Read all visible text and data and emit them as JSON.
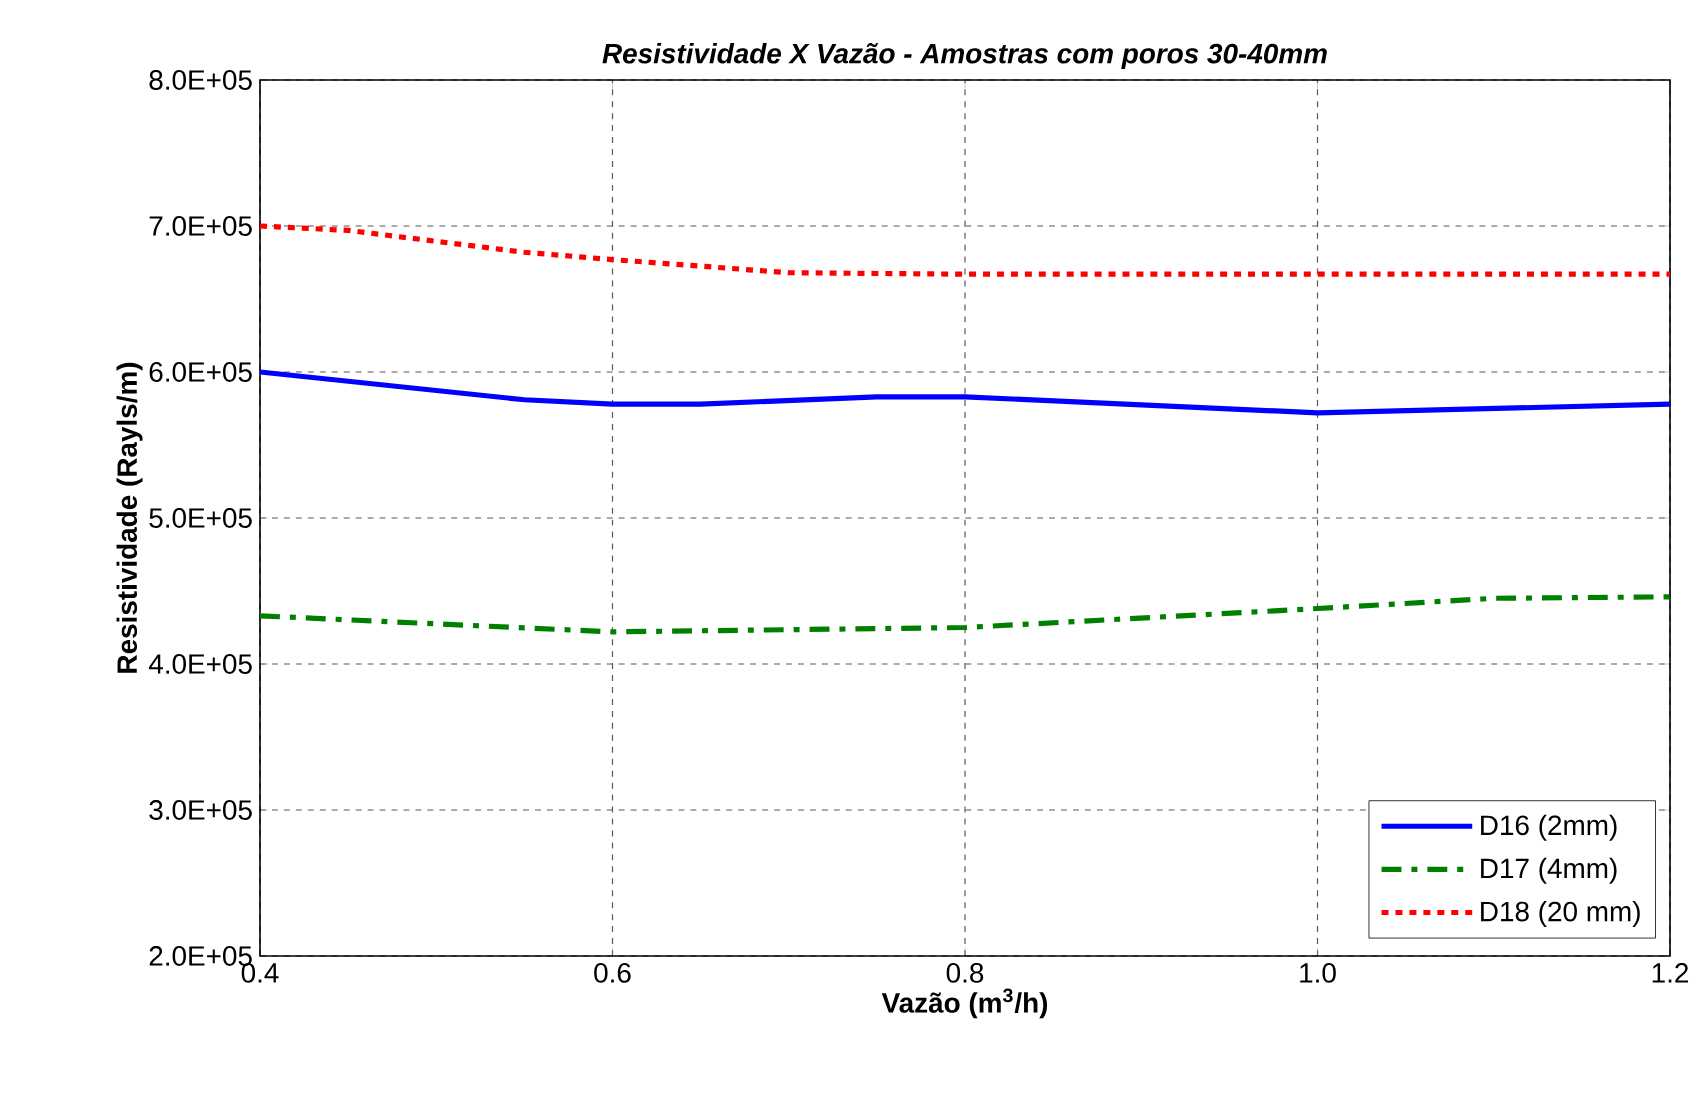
{
  "chart_data": {
    "type": "line",
    "title": "Resistividade X Vazão - Amostras com poros 30-40mm",
    "xlabel": "Vazão (m$^{3}$/h)",
    "ylabel": "Resistividade (Rayls/m)",
    "xlim": [
      0.4,
      1.2
    ],
    "xticks": [
      {
        "value": 0.4,
        "label": "0.4"
      },
      {
        "value": 0.6,
        "label": "0.6"
      },
      {
        "value": 0.8,
        "label": "0.8"
      },
      {
        "value": 1.0,
        "label": "1.0"
      },
      {
        "value": 1.2,
        "label": "1.2"
      }
    ],
    "ylim": [
      200000,
      800000
    ],
    "yticks": [
      {
        "value": 200000,
        "label": "2.0E+05"
      },
      {
        "value": 300000,
        "label": "3.0E+05"
      },
      {
        "value": 400000,
        "label": "4.0E+05"
      },
      {
        "value": 500000,
        "label": "5.0E+05"
      },
      {
        "value": 600000,
        "label": "6.0E+05"
      },
      {
        "value": 700000,
        "label": "7.0E+05"
      },
      {
        "value": 800000,
        "label": "8.0E+05"
      }
    ],
    "grid": true,
    "legend": "bottom right",
    "marker": "none",
    "series": [
      {
        "name": "D16 (2mm)",
        "color": "#0000ff",
        "line_style": "solid",
        "x": [
          0.4,
          0.55,
          0.6,
          0.65,
          0.75,
          0.8,
          1.0,
          1.2
        ],
        "values": [
          600000,
          581000,
          578000,
          578000,
          583000,
          583000,
          572000,
          578000
        ]
      },
      {
        "name": "D17 (4mm)",
        "color": "#008000",
        "line_style": "dashdot",
        "x": [
          0.4,
          0.6,
          0.8,
          1.0,
          1.1,
          1.2
        ],
        "values": [
          433000,
          422000,
          425000,
          438000,
          445000,
          446000
        ]
      },
      {
        "name": "D18 (20 mm)",
        "color": "#ff0000",
        "line_style": "dotted",
        "x": [
          0.4,
          0.45,
          0.55,
          0.6,
          0.7,
          0.8,
          1.0,
          1.2
        ],
        "values": [
          700000,
          697000,
          682000,
          677000,
          668000,
          667000,
          667000,
          667000
        ]
      }
    ]
  }
}
